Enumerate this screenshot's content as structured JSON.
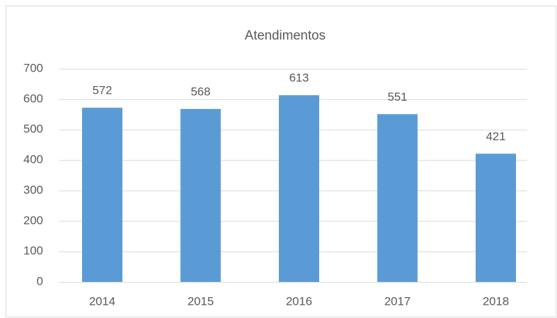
{
  "chart_data": {
    "type": "bar",
    "title": "Atendimentos",
    "categories": [
      "2014",
      "2015",
      "2016",
      "2017",
      "2018"
    ],
    "values": [
      572,
      568,
      613,
      551,
      421
    ],
    "color": "#5b9bd5",
    "ylim": [
      0,
      700
    ],
    "yticks": [
      0,
      100,
      200,
      300,
      400,
      500,
      600,
      700
    ],
    "grid": true
  }
}
